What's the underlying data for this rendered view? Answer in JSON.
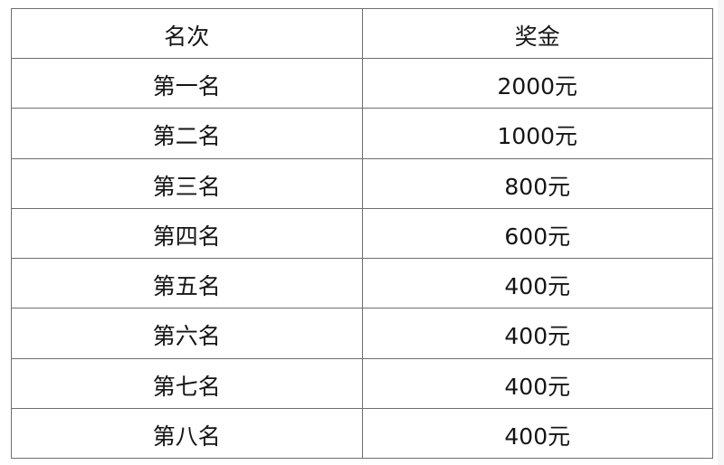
{
  "table": {
    "headers": [
      "名次",
      "奖金"
    ],
    "rows": [
      [
        "第一名",
        "2000元"
      ],
      [
        "第二名",
        "1000元"
      ],
      [
        "第三名",
        "800元"
      ],
      [
        "第四名",
        "600元"
      ],
      [
        "第五名",
        "400元"
      ],
      [
        "第六名",
        "400元"
      ],
      [
        "第七名",
        "400元"
      ],
      [
        "第八名",
        "400元"
      ]
    ]
  }
}
